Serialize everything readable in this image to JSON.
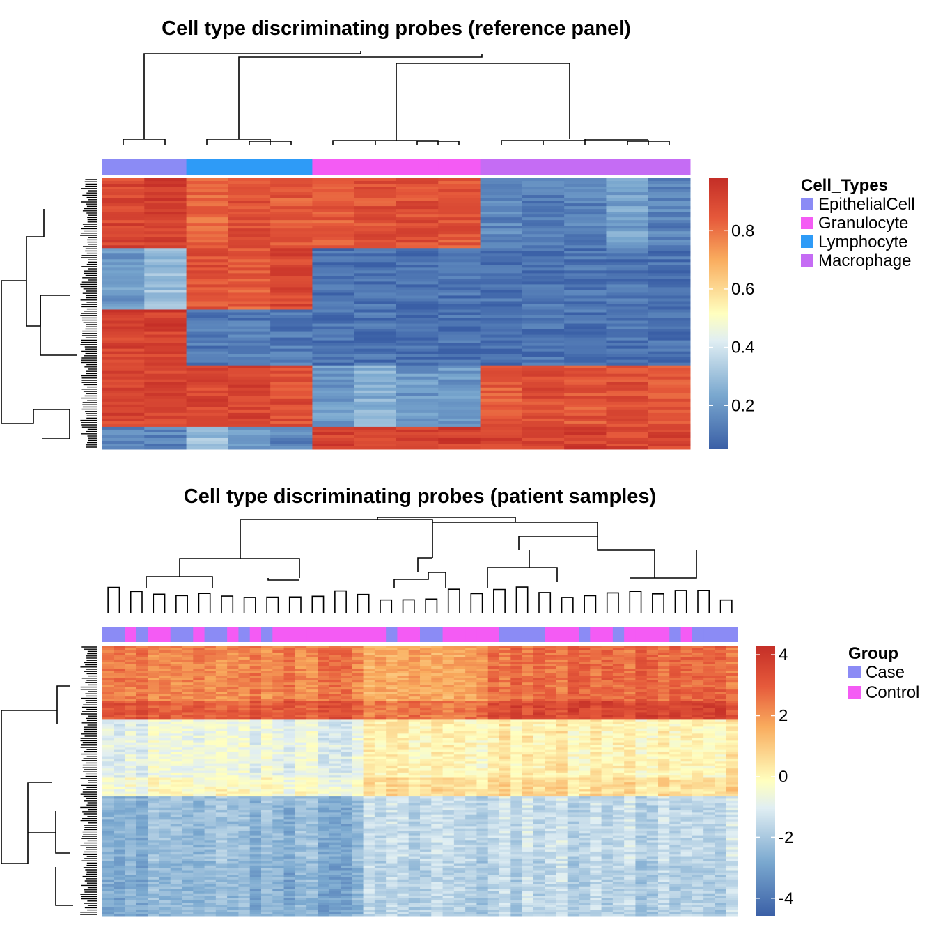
{
  "chart_data": [
    {
      "type": "heatmap",
      "title": "Cell type discriminating probes (reference panel)",
      "columns": [
        "EpithelialCell",
        "EpithelialCell",
        "Lymphocyte",
        "Lymphocyte",
        "Lymphocyte",
        "Granulocyte",
        "Granulocyte",
        "Granulocyte",
        "Granulocyte",
        "Macrophage",
        "Macrophage",
        "Macrophage",
        "Macrophage",
        "Macrophage"
      ],
      "row_blocks": [
        {
          "rows": 25,
          "values": [
            0.9,
            0.92,
            0.82,
            0.88,
            0.85,
            0.85,
            0.87,
            0.88,
            0.86,
            0.15,
            0.13,
            0.14,
            0.22,
            0.14
          ]
        },
        {
          "rows": 22,
          "values": [
            0.2,
            0.3,
            0.87,
            0.85,
            0.9,
            0.1,
            0.1,
            0.1,
            0.1,
            0.1,
            0.1,
            0.1,
            0.1,
            0.1
          ]
        },
        {
          "rows": 20,
          "values": [
            0.92,
            0.92,
            0.12,
            0.12,
            0.12,
            0.1,
            0.1,
            0.1,
            0.1,
            0.1,
            0.1,
            0.1,
            0.1,
            0.1
          ]
        },
        {
          "rows": 22,
          "values": [
            0.9,
            0.9,
            0.9,
            0.9,
            0.88,
            0.2,
            0.25,
            0.2,
            0.2,
            0.85,
            0.88,
            0.86,
            0.88,
            0.85
          ]
        },
        {
          "rows": 8,
          "values": [
            0.15,
            0.15,
            0.3,
            0.2,
            0.15,
            0.92,
            0.92,
            0.92,
            0.92,
            0.9,
            0.9,
            0.92,
            0.9,
            0.9
          ]
        }
      ],
      "color_scale": {
        "min": 0.05,
        "max": 0.98,
        "ticks": [
          0.2,
          0.4,
          0.6,
          0.8
        ]
      },
      "legend": {
        "title": "Cell_Types",
        "items": [
          {
            "label": "EpithelialCell",
            "color": "#8B8BF5"
          },
          {
            "label": "Granulocyte",
            "color": "#F45BF4"
          },
          {
            "label": "Lymphocyte",
            "color": "#2E9BF7"
          },
          {
            "label": "Macrophage",
            "color": "#C56CF4"
          }
        ]
      }
    },
    {
      "type": "heatmap",
      "title": "Cell type discriminating probes (patient samples)",
      "group_segments": [
        {
          "group": "Case",
          "n": 2
        },
        {
          "group": "Control",
          "n": 1
        },
        {
          "group": "Case",
          "n": 1
        },
        {
          "group": "Control",
          "n": 2
        },
        {
          "group": "Case",
          "n": 2
        },
        {
          "group": "Control",
          "n": 1
        },
        {
          "group": "Case",
          "n": 2
        },
        {
          "group": "Control",
          "n": 1
        },
        {
          "group": "Case",
          "n": 1
        },
        {
          "group": "Control",
          "n": 1
        },
        {
          "group": "Case",
          "n": 1
        },
        {
          "group": "Control",
          "n": 10
        },
        {
          "group": "Case",
          "n": 1
        },
        {
          "group": "Control",
          "n": 2
        },
        {
          "group": "Case",
          "n": 2
        },
        {
          "group": "Control",
          "n": 5
        },
        {
          "group": "Case",
          "n": 4
        },
        {
          "group": "Control",
          "n": 3
        },
        {
          "group": "Case",
          "n": 1
        },
        {
          "group": "Control",
          "n": 2
        },
        {
          "group": "Case",
          "n": 1
        },
        {
          "group": "Control",
          "n": 4
        },
        {
          "group": "Case",
          "n": 1
        },
        {
          "group": "Control",
          "n": 1
        },
        {
          "group": "Case",
          "n": 4
        }
      ],
      "row_bands": [
        {
          "rows": 24,
          "level": 2.3
        },
        {
          "rows": 8,
          "level": 3.1
        },
        {
          "rows": 25,
          "level": -0.8
        },
        {
          "rows": 8,
          "level": -0.3
        },
        {
          "rows": 28,
          "level": -2.4
        },
        {
          "rows": 24,
          "level": -2.6
        }
      ],
      "color_scale": {
        "min": -4.6,
        "max": 4.3,
        "ticks": [
          4,
          2,
          0,
          -2,
          -4
        ]
      },
      "legend": {
        "title": "Group",
        "items": [
          {
            "label": "Case",
            "color": "#8B8BF5"
          },
          {
            "label": "Control",
            "color": "#F45BF4"
          }
        ]
      }
    }
  ]
}
